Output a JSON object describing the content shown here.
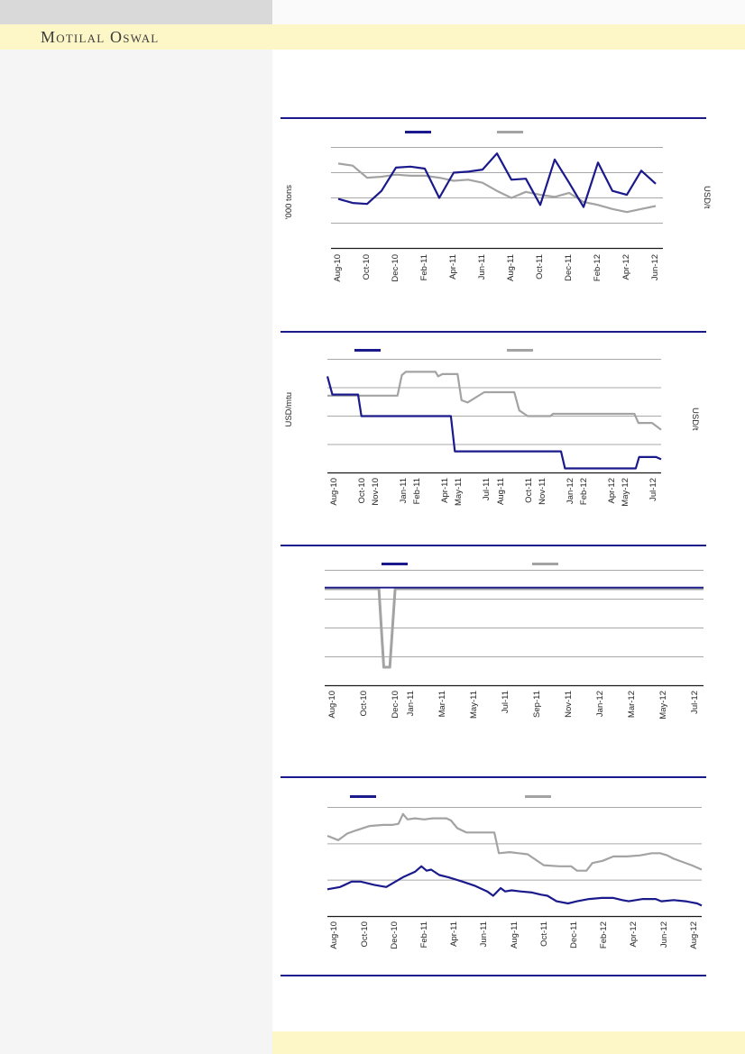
{
  "header": {
    "brand": "Motilal Oswal"
  },
  "colors": {
    "navy_line": "#1a1a8c",
    "gray_line": "#a3a3a3",
    "gridline": "#a8a8a8",
    "axis": "#1a1a1a",
    "divider": "#1a1a8c",
    "brand_band": "#fdf6c6",
    "top_left_band": "#d9d9d9",
    "top_right_band": "#fafafa",
    "sidebar": "#f5f5f5",
    "footer_band": "#fdf6c6",
    "brand_text": "#3c3c3c"
  },
  "charts": [
    {
      "name": "chart-1-monthly-lines",
      "chart_data": {
        "type": "line",
        "title": "",
        "left_axis_label": "'000 tons",
        "right_axis_label": "USD/t",
        "legend": [
          {
            "series": "navy",
            "label": ""
          },
          {
            "series": "gray",
            "label": ""
          }
        ],
        "x_axis": {
          "n_months": 23,
          "tick_labels": [
            "Aug-10",
            "Oct-10",
            "Dec-10",
            "Feb-11",
            "Apr-11",
            "Jun-11",
            "Aug-11",
            "Oct-11",
            "Dec-11",
            "Feb-12",
            "Apr-12",
            "Jun-12"
          ],
          "tick_months": [
            0,
            2,
            4,
            6,
            8,
            10,
            12,
            14,
            16,
            18,
            20,
            22
          ]
        },
        "y_axis": {
          "tick_labels_visible": false,
          "gridline_count": 4,
          "scale_note": "no numeric y ticks shown; series values estimated 0-100 (0 = x-axis, 100 = top gridline)"
        },
        "series": [
          {
            "id": "navy",
            "color": "#1a1a8c",
            "values": [
              49,
              45,
              44,
              57,
              80,
              81,
              79,
              50,
              75,
              76,
              78,
              94,
              68,
              69,
              43,
              88,
              65,
              41,
              85,
              57,
              53,
              77,
              64
            ]
          },
          {
            "id": "gray",
            "color": "#a3a3a3",
            "values": [
              84,
              82,
              70,
              71,
              73,
              72,
              72,
              70,
              67,
              68,
              65,
              57,
              50,
              56,
              53,
              51,
              55,
              46,
              43,
              39,
              36,
              39,
              42
            ]
          }
        ]
      }
    },
    {
      "name": "chart-2-step-lines",
      "chart_data": {
        "type": "line",
        "title": "",
        "left_axis_label": "USD/mtu",
        "right_axis_label": "USD/t",
        "legend": [
          {
            "series": "navy",
            "label": ""
          },
          {
            "series": "gray",
            "label": ""
          }
        ],
        "x_axis": {
          "n_months": 24,
          "tick_labels": [
            "Aug-10",
            "Oct-10",
            "Nov-10",
            "Jan-11",
            "Feb-11",
            "Apr-11",
            "May-11",
            "Jul-11",
            "Aug-11",
            "Oct-11",
            "Nov-11",
            "Jan-12",
            "Feb-12",
            "Apr-12",
            "May-12",
            "Jul-12"
          ],
          "tick_months": [
            0,
            2,
            3,
            5,
            6,
            8,
            9,
            11,
            12,
            14,
            15,
            17,
            18,
            20,
            21,
            23
          ]
        },
        "y_axis": {
          "tick_labels_visible": false,
          "gridline_count": 4,
          "scale_note": "no numeric y ticks shown; series values estimated 0-100 (0 = x-axis, 100 = top gridline)"
        },
        "series": [
          {
            "id": "navy",
            "color": "#1a1a8c",
            "points": [
              [
                0,
                85
              ],
              [
                1.5,
                69
              ],
              [
                9.2,
                69
              ],
              [
                10.2,
                50
              ],
              [
                37,
                50
              ],
              [
                38.2,
                19
              ],
              [
                70,
                19
              ],
              [
                71.2,
                4
              ],
              [
                92.4,
                4
              ],
              [
                93.4,
                14
              ],
              [
                98.5,
                14
              ],
              [
                100,
                12
              ]
            ]
          },
          {
            "id": "gray",
            "color": "#a3a3a3",
            "points": [
              [
                0,
                68
              ],
              [
                21,
                68
              ],
              [
                22.3,
                86
              ],
              [
                23.5,
                89
              ],
              [
                32.4,
                89
              ],
              [
                33.2,
                85
              ],
              [
                34.5,
                87
              ],
              [
                39,
                87
              ],
              [
                40.2,
                64
              ],
              [
                42,
                62
              ],
              [
                47,
                71
              ],
              [
                56,
                71
              ],
              [
                57.5,
                55
              ],
              [
                60,
                50
              ],
              [
                66.8,
                50
              ],
              [
                67.6,
                52
              ],
              [
                92,
                52
              ],
              [
                93.2,
                44
              ],
              [
                97.3,
                44
              ],
              [
                100,
                38
              ]
            ]
          }
        ]
      }
    },
    {
      "name": "chart-3-flat-lines-with-dip",
      "chart_data": {
        "type": "line",
        "title": "",
        "left_axis_label": "",
        "right_axis_label": "",
        "legend": [
          {
            "series": "navy",
            "label": ""
          },
          {
            "series": "gray",
            "label": ""
          }
        ],
        "x_axis": {
          "n_months": 24,
          "tick_labels": [
            "Aug-10",
            "Oct-10",
            "Dec-10",
            "Jan-11",
            "Mar-11",
            "May-11",
            "Jul-11",
            "Sep-11",
            "Nov-11",
            "Jan-12",
            "Mar-12",
            "May-12",
            "Jul-12"
          ],
          "tick_months": [
            0,
            2,
            4,
            5,
            7,
            9,
            11,
            13,
            15,
            17,
            19,
            21,
            23
          ]
        },
        "y_axis": {
          "tick_labels_visible": false,
          "gridline_count": 4,
          "scale_note": "no numeric y ticks shown; both lines flat near 85; gray dips sharply around Dec-10"
        },
        "series": [
          {
            "id": "navy",
            "color": "#1a1a8c",
            "points": [
              [
                0,
                85
              ],
              [
                100,
                85
              ]
            ]
          },
          {
            "id": "gray",
            "color": "#a3a3a3",
            "points": [
              [
                0,
                84
              ],
              [
                14.3,
                84
              ],
              [
                15.6,
                16
              ],
              [
                17.2,
                16
              ],
              [
                18.6,
                84
              ],
              [
                100,
                84
              ]
            ]
          }
        ]
      }
    },
    {
      "name": "chart-4-daily-lines",
      "chart_data": {
        "type": "line",
        "title": "",
        "left_axis_label": "",
        "right_axis_label": "",
        "legend": [
          {
            "series": "navy",
            "label": ""
          },
          {
            "series": "gray",
            "label": ""
          }
        ],
        "x_axis": {
          "n_months": 25,
          "tick_labels": [
            "Aug-10",
            "Oct-10",
            "Dec-10",
            "Feb-11",
            "Apr-11",
            "Jun-11",
            "Aug-11",
            "Oct-11",
            "Dec-11",
            "Feb-12",
            "Apr-12",
            "Jun-12",
            "Aug-12"
          ],
          "tick_months": [
            0,
            2,
            4,
            6,
            8,
            10,
            12,
            14,
            16,
            18,
            20,
            22,
            24
          ]
        },
        "y_axis": {
          "tick_labels_visible": false,
          "gridline_count": 3,
          "scale_note": "no numeric y ticks shown; series values estimated 0-100 (0 = x-axis, 100 = top gridline)"
        },
        "series": [
          {
            "id": "navy",
            "color": "#1a1a8c",
            "points": [
              [
                0,
                25
              ],
              [
                3.4,
                27
              ],
              [
                6.5,
                32
              ],
              [
                8.9,
                32
              ],
              [
                12.5,
                29
              ],
              [
                15.7,
                27
              ],
              [
                20.2,
                36
              ],
              [
                23.4,
                41
              ],
              [
                25.1,
                46
              ],
              [
                26.5,
                42
              ],
              [
                27.7,
                43
              ],
              [
                29.9,
                38
              ],
              [
                32.3,
                36
              ],
              [
                36.1,
                32
              ],
              [
                39.5,
                28
              ],
              [
                42.7,
                23
              ],
              [
                44.3,
                19
              ],
              [
                46.3,
                26
              ],
              [
                47.5,
                23
              ],
              [
                49.2,
                24
              ],
              [
                51.6,
                23
              ],
              [
                54.7,
                22
              ],
              [
                57.1,
                20
              ],
              [
                58.8,
                19
              ],
              [
                61.2,
                14
              ],
              [
                64.3,
                12
              ],
              [
                66.7,
                14
              ],
              [
                69.9,
                16
              ],
              [
                73.3,
                17
              ],
              [
                76.4,
                17
              ],
              [
                78.8,
                15
              ],
              [
                80.5,
                14
              ],
              [
                84.3,
                16
              ],
              [
                87.7,
                16
              ],
              [
                89.2,
                14
              ],
              [
                92.5,
                15
              ],
              [
                95.7,
                14
              ],
              [
                98.8,
                12
              ],
              [
                100,
                10
              ]
            ]
          },
          {
            "id": "gray",
            "color": "#a3a3a3",
            "points": [
              [
                0,
                74
              ],
              [
                2.9,
                70
              ],
              [
                5.3,
                76
              ],
              [
                7.7,
                79
              ],
              [
                11.3,
                83
              ],
              [
                14.9,
                84
              ],
              [
                17.3,
                84
              ],
              [
                19,
                85
              ],
              [
                20.2,
                94
              ],
              [
                21.4,
                89
              ],
              [
                23.4,
                90
              ],
              [
                25.8,
                89
              ],
              [
                28.2,
                90
              ],
              [
                31.8,
                90
              ],
              [
                33,
                88
              ],
              [
                34.7,
                81
              ],
              [
                37.1,
                77
              ],
              [
                40.2,
                77
              ],
              [
                44.6,
                77
              ],
              [
                45.8,
                58
              ],
              [
                48.7,
                59
              ],
              [
                51.1,
                58
              ],
              [
                53.5,
                57
              ],
              [
                57.8,
                47
              ],
              [
                61.9,
                46
              ],
              [
                65.1,
                46
              ],
              [
                66.7,
                42
              ],
              [
                69.2,
                42
              ],
              [
                70.8,
                49
              ],
              [
                73.5,
                51
              ],
              [
                76.4,
                55
              ],
              [
                80,
                55
              ],
              [
                83.6,
                56
              ],
              [
                86.7,
                58
              ],
              [
                88.9,
                58
              ],
              [
                90.8,
                56
              ],
              [
                92.5,
                53
              ],
              [
                94.9,
                50
              ],
              [
                97.3,
                47
              ],
              [
                100,
                43
              ]
            ]
          }
        ]
      }
    }
  ]
}
